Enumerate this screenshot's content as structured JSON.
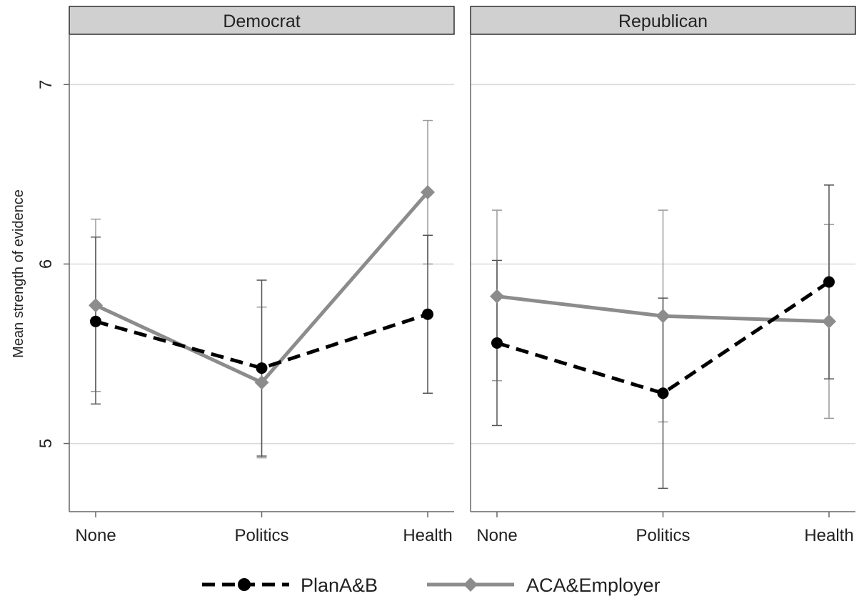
{
  "chart_data": {
    "type": "line",
    "ylabel": "Mean strength of evidence",
    "ylim": [
      4.62,
      7.28
    ],
    "yticks": [
      5,
      6,
      7
    ],
    "grid": true,
    "legend_position": "bottom",
    "categories": [
      "None",
      "Politics",
      "Health"
    ],
    "panels": [
      {
        "title": "Democrat",
        "series": [
          {
            "name": "PlanA&B",
            "color": "#000000",
            "style": "dashed",
            "marker": "circle",
            "values": [
              5.68,
              5.42,
              5.72
            ],
            "ci_low": [
              5.22,
              4.93,
              5.28
            ],
            "ci_high": [
              6.15,
              5.91,
              6.16
            ]
          },
          {
            "name": "ACA&Employer",
            "color": "#8c8c8c",
            "style": "solid",
            "marker": "diamond",
            "values": [
              5.77,
              5.34,
              6.4
            ],
            "ci_low": [
              5.29,
              4.92,
              6.0
            ],
            "ci_high": [
              6.25,
              5.76,
              6.8
            ]
          }
        ]
      },
      {
        "title": "Republican",
        "series": [
          {
            "name": "PlanA&B",
            "color": "#000000",
            "style": "dashed",
            "marker": "circle",
            "values": [
              5.56,
              5.28,
              5.9
            ],
            "ci_low": [
              5.1,
              4.75,
              5.36
            ],
            "ci_high": [
              6.02,
              5.81,
              6.44
            ]
          },
          {
            "name": "ACA&Employer",
            "color": "#8c8c8c",
            "style": "solid",
            "marker": "diamond",
            "values": [
              5.82,
              5.71,
              5.68
            ],
            "ci_low": [
              5.35,
              5.12,
              5.14
            ],
            "ci_high": [
              6.3,
              6.3,
              6.22
            ]
          }
        ]
      }
    ]
  }
}
